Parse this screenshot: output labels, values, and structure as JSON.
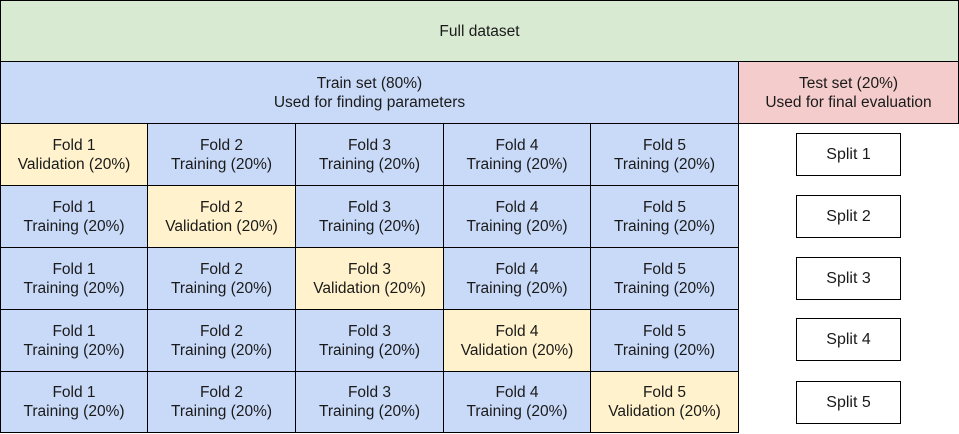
{
  "full_dataset": {
    "label": "Full dataset",
    "color": "#d9ead3"
  },
  "train_set": {
    "line1": "Train set (80%)",
    "line2": "Used for finding parameters",
    "color": "#c9daf8"
  },
  "test_set": {
    "line1": "Test set (20%)",
    "line2": "Used for final evaluation",
    "color": "#f4cccc"
  },
  "colors": {
    "training": "#c9daf8",
    "validation": "#fff2cc"
  },
  "rows": [
    {
      "split": "Split 1",
      "folds": [
        {
          "name": "Fold 1",
          "role": "Validation (20%)"
        },
        {
          "name": "Fold 2",
          "role": "Training (20%)"
        },
        {
          "name": "Fold 3",
          "role": "Training (20%)"
        },
        {
          "name": "Fold 4",
          "role": "Training (20%)"
        },
        {
          "name": "Fold 5",
          "role": "Training (20%)"
        }
      ]
    },
    {
      "split": "Split 2",
      "folds": [
        {
          "name": "Fold 1",
          "role": "Training (20%)"
        },
        {
          "name": "Fold 2",
          "role": "Validation (20%)"
        },
        {
          "name": "Fold 3",
          "role": "Training (20%)"
        },
        {
          "name": "Fold 4",
          "role": "Training (20%)"
        },
        {
          "name": "Fold 5",
          "role": "Training (20%)"
        }
      ]
    },
    {
      "split": "Split 3",
      "folds": [
        {
          "name": "Fold 1",
          "role": "Training (20%)"
        },
        {
          "name": "Fold 2",
          "role": "Training (20%)"
        },
        {
          "name": "Fold 3",
          "role": "Validation (20%)"
        },
        {
          "name": "Fold 4",
          "role": "Training (20%)"
        },
        {
          "name": "Fold 5",
          "role": "Training (20%)"
        }
      ]
    },
    {
      "split": "Split 4",
      "folds": [
        {
          "name": "Fold 1",
          "role": "Training (20%)"
        },
        {
          "name": "Fold 2",
          "role": "Training (20%)"
        },
        {
          "name": "Fold 3",
          "role": "Training (20%)"
        },
        {
          "name": "Fold 4",
          "role": "Validation (20%)"
        },
        {
          "name": "Fold 5",
          "role": "Training (20%)"
        }
      ]
    },
    {
      "split": "Split 5",
      "folds": [
        {
          "name": "Fold 1",
          "role": "Training (20%)"
        },
        {
          "name": "Fold 2",
          "role": "Training (20%)"
        },
        {
          "name": "Fold 3",
          "role": "Training (20%)"
        },
        {
          "name": "Fold 4",
          "role": "Training (20%)"
        },
        {
          "name": "Fold 5",
          "role": "Validation (20%)"
        }
      ]
    }
  ]
}
